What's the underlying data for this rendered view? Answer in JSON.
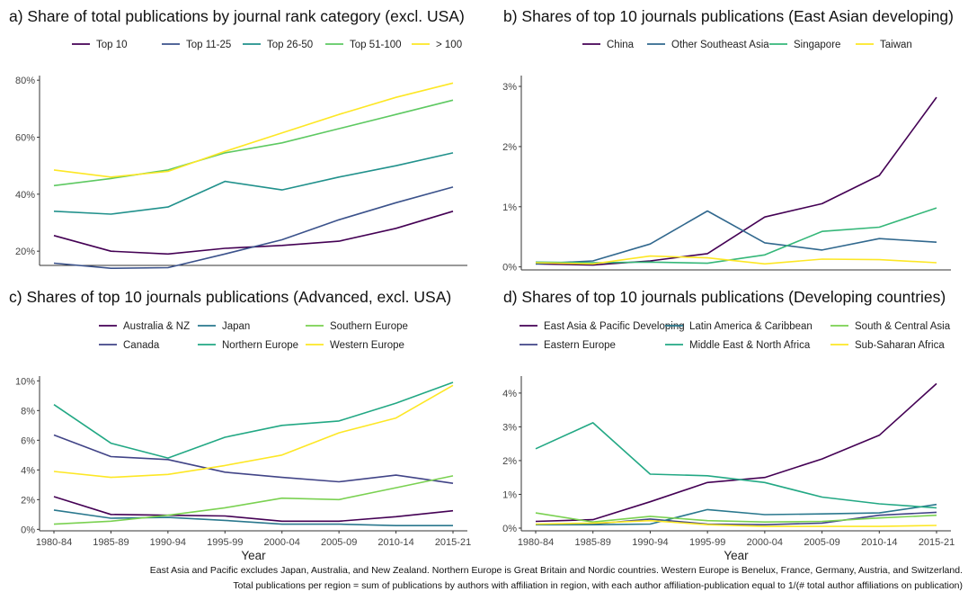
{
  "palette": {
    "viridis5": [
      "#440154",
      "#3b528b",
      "#21918c",
      "#5ec962",
      "#fde725"
    ],
    "viridis4": [
      "#440154",
      "#31688e",
      "#35b779",
      "#fde725"
    ],
    "viridis6": [
      "#440154",
      "#414487",
      "#2a788e",
      "#22a884",
      "#7ad151",
      "#fde725"
    ],
    "axis": "#333333",
    "tick": "#444444"
  },
  "x_axis": {
    "categories": [
      "1980-84",
      "1985-89",
      "1990-94",
      "1995-99",
      "2000-04",
      "2005-09",
      "2010-14",
      "2015-21"
    ],
    "label": "Year"
  },
  "chart_data": [
    {
      "type": "line",
      "title": "a) Share of total publications by journal rank category (excl. USA)",
      "ylim": [
        15,
        81
      ],
      "yticks": [
        20,
        40,
        60,
        80
      ],
      "ytick_labels": [
        "20%",
        "40%",
        "60%",
        "80%"
      ],
      "series": [
        {
          "name": "Top 10",
          "values": [
            25.5,
            20,
            19,
            21,
            22,
            23.5,
            28,
            34
          ]
        },
        {
          "name": "Top 11-25",
          "values": [
            15.8,
            14,
            14.2,
            19,
            24,
            31,
            37,
            42.5
          ]
        },
        {
          "name": "Top 26-50",
          "values": [
            34,
            33,
            35.5,
            44.5,
            41.5,
            46,
            50,
            54.5
          ]
        },
        {
          "name": "Top 51-100",
          "values": [
            43,
            45.5,
            48.5,
            54.5,
            58,
            63,
            68,
            73
          ]
        },
        {
          "name": "> 100",
          "values": [
            48.5,
            46,
            48,
            55,
            61.5,
            68,
            74,
            79
          ]
        }
      ]
    },
    {
      "type": "line",
      "title": "b) Shares of top 10 journals publications (East Asian developing)",
      "ylim": [
        -0.05,
        3.15
      ],
      "yticks": [
        0,
        1,
        2,
        3
      ],
      "ytick_labels": [
        "0%",
        "1%",
        "2%",
        "3%"
      ],
      "series": [
        {
          "name": "China",
          "values": [
            0.05,
            0.03,
            0.1,
            0.22,
            0.83,
            1.05,
            1.52,
            2.82
          ]
        },
        {
          "name": "Other Southeast Asia",
          "values": [
            0.05,
            0.1,
            0.38,
            0.93,
            0.4,
            0.28,
            0.47,
            0.41
          ]
        },
        {
          "name": "Singapore",
          "values": [
            0.08,
            0.07,
            0.08,
            0.06,
            0.2,
            0.59,
            0.66,
            0.98
          ]
        },
        {
          "name": "Taiwan",
          "values": [
            0.07,
            0.05,
            0.18,
            0.15,
            0.05,
            0.13,
            0.12,
            0.07
          ]
        }
      ]
    },
    {
      "type": "line",
      "title": "c) Shares of top 10 journals publications (Advanced, excl. USA)",
      "ylim": [
        -0.1,
        10.2
      ],
      "yticks": [
        0,
        2,
        4,
        6,
        8,
        10
      ],
      "ytick_labels": [
        "0%",
        "2%",
        "4%",
        "6%",
        "8%",
        "10%"
      ],
      "series": [
        {
          "name": "Australia & NZ",
          "values": [
            2.2,
            1.0,
            0.95,
            0.9,
            0.55,
            0.55,
            0.85,
            1.25
          ]
        },
        {
          "name": "Canada",
          "values": [
            6.35,
            4.9,
            4.7,
            3.85,
            3.5,
            3.2,
            3.65,
            3.1
          ]
        },
        {
          "name": "Japan",
          "values": [
            1.3,
            0.75,
            0.8,
            0.6,
            0.35,
            0.35,
            0.25,
            0.25
          ]
        },
        {
          "name": "Northern Europe",
          "values": [
            8.4,
            5.8,
            4.8,
            6.2,
            7.0,
            7.3,
            8.5,
            9.9
          ]
        },
        {
          "name": "Southern Europe",
          "values": [
            0.35,
            0.55,
            0.95,
            1.45,
            2.1,
            2.0,
            2.8,
            3.6
          ]
        },
        {
          "name": "Western Europe",
          "values": [
            3.9,
            3.5,
            3.7,
            4.3,
            5.0,
            6.5,
            7.5,
            9.7
          ]
        }
      ]
    },
    {
      "type": "line",
      "title": "d) Shares of top 10 journals publications (Developing countries)",
      "ylim": [
        -0.08,
        4.45
      ],
      "yticks": [
        0,
        1,
        2,
        3,
        4
      ],
      "ytick_labels": [
        "0%",
        "1%",
        "2%",
        "3%",
        "4%"
      ],
      "series": [
        {
          "name": "East Asia & Pacific Developing",
          "values": [
            0.2,
            0.25,
            0.78,
            1.35,
            1.5,
            2.05,
            2.75,
            4.28
          ]
        },
        {
          "name": "Eastern Europe",
          "values": [
            0.1,
            0.12,
            0.27,
            0.12,
            0.1,
            0.15,
            0.38,
            0.47
          ]
        },
        {
          "name": "Latin America & Caribbean",
          "values": [
            0.1,
            0.1,
            0.12,
            0.55,
            0.4,
            0.42,
            0.45,
            0.7
          ]
        },
        {
          "name": "Middle East & North Africa",
          "values": [
            2.35,
            3.12,
            1.6,
            1.55,
            1.35,
            0.92,
            0.72,
            0.6
          ]
        },
        {
          "name": "South & Central Asia",
          "values": [
            0.45,
            0.18,
            0.35,
            0.22,
            0.18,
            0.2,
            0.3,
            0.38
          ]
        },
        {
          "name": "Sub-Saharan Africa",
          "values": [
            0.12,
            0.15,
            0.22,
            0.1,
            0.05,
            0.05,
            0.05,
            0.08
          ]
        }
      ]
    }
  ],
  "footnotes": [
    "East Asia and Pacific excludes Japan, Australia, and New Zealand. Northern Europe is Great Britain and Nordic countries. Western Europe is Benelux, France, Germany, Austria, and Switzerland.",
    "Total publications per region = sum of publications by authors with affiliation in region, with each author affiliation-publication equal to 1/(# total author affiliations on publication)"
  ]
}
